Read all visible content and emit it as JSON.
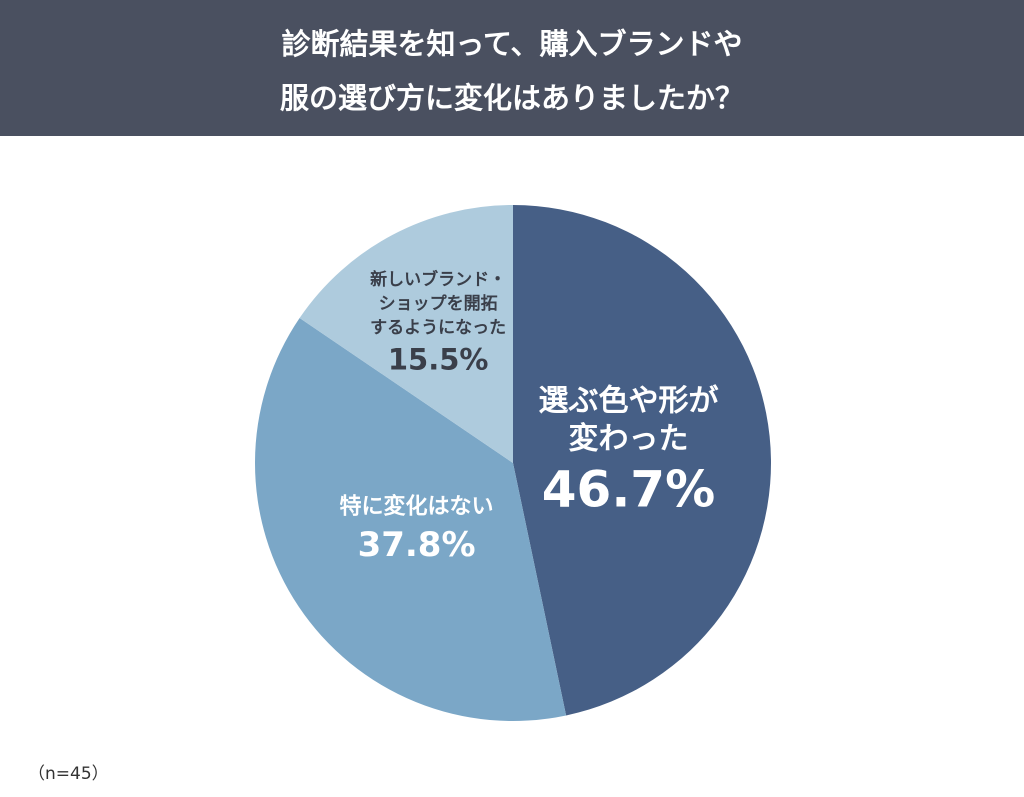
{
  "chart_data": {
    "type": "pie",
    "title": [
      "診断結果を知って、購入ブランドや",
      "服の選び方に変化はありましたか？"
    ],
    "categories": [
      [
        "選ぶ色や形が",
        "変わった"
      ],
      [
        "特に変化はない"
      ],
      [
        "新しいブランド・",
        "ショップを開拓",
        "するようになった"
      ]
    ],
    "values": [
      46.7,
      37.8,
      15.5
    ],
    "value_labels": [
      "46.7%",
      "37.8%",
      "15.5%"
    ],
    "colors": [
      "#465f86",
      "#7ba7c7",
      "#aecbdd"
    ],
    "note": "（n=45）"
  }
}
